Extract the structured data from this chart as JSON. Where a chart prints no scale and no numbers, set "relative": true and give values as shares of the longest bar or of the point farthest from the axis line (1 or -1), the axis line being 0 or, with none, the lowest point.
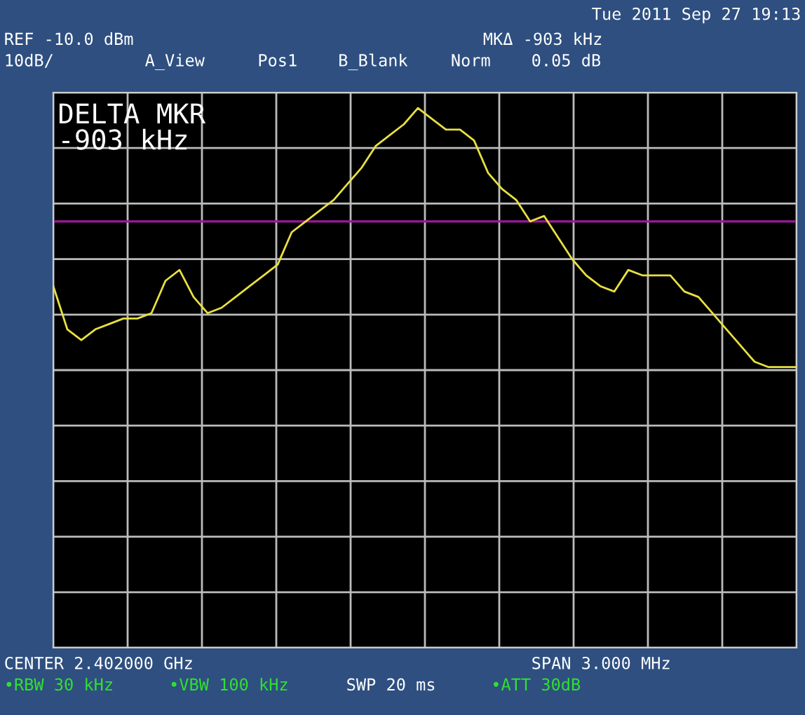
{
  "chart_data": {
    "type": "line",
    "title": "DELTA MKR",
    "subtitle": "-903 kHz",
    "categories": [
      null,
      null,
      null,
      null,
      null,
      null,
      null,
      null,
      null,
      null,
      null,
      null,
      null,
      null,
      null,
      null,
      null,
      null,
      null,
      null,
      null,
      null,
      null,
      null,
      null,
      null,
      null,
      null,
      null,
      null,
      null,
      null,
      null,
      null,
      null,
      null,
      null,
      null,
      null,
      null,
      null,
      null,
      null,
      null,
      null,
      null,
      null,
      null,
      null,
      null,
      null,
      null,
      null,
      null
    ],
    "series": [
      {
        "color": "#e8e040",
        "values": [
          0.67,
          0.59,
          0.57,
          0.59,
          0.6,
          0.61,
          0.61,
          0.62,
          0.68,
          0.7,
          0.65,
          0.62,
          0.63,
          0.65,
          0.67,
          0.69,
          0.71,
          0.77,
          0.79,
          0.81,
          0.83,
          0.86,
          0.89,
          0.93,
          0.95,
          0.97,
          1.0,
          0.98,
          0.96,
          0.96,
          0.94,
          0.88,
          0.85,
          0.83,
          0.79,
          0.8,
          0.76,
          0.72,
          0.69,
          0.67,
          0.66,
          0.7,
          0.69,
          0.69,
          0.69,
          0.66,
          0.65,
          0.62,
          0.59,
          0.56,
          0.53,
          0.52,
          0.52,
          0.52
        ]
      }
    ],
    "relative": true,
    "grid": true,
    "ref_lines": [
      {
        "axis": "y",
        "value": 0.79,
        "color": "#9a1a9a"
      }
    ],
    "annotations": [
      "Tue 2011 Sep 27 19:13",
      "REF -10.0 dBm",
      "10dB/",
      "A_View",
      "Pos1",
      "B_Blank",
      "Norm",
      "MKΔ -903 kHz",
      "0.05 dB",
      "CENTER 2.402000 GHz",
      "SPAN 3.000 MHz",
      "•RBW 30 kHz",
      "•VBW 100 kHz",
      "SWP 20 ms",
      "•ATT 30dB"
    ]
  }
}
